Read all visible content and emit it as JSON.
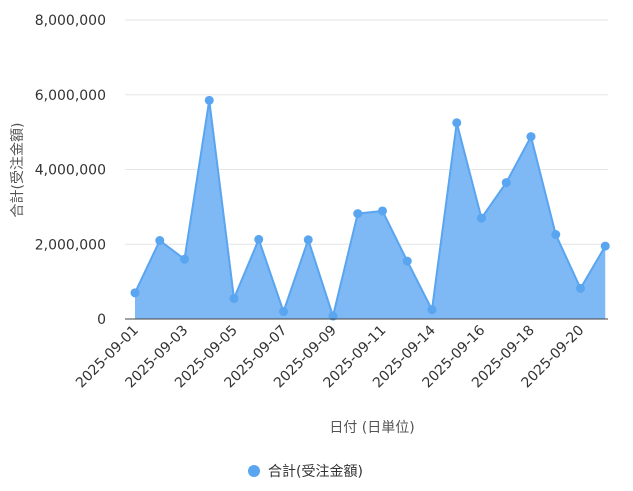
{
  "chart_data": {
    "type": "area",
    "xlabel": "日付 (日単位)",
    "ylabel": "合計(受注金額)",
    "ylim": [
      0,
      8000000
    ],
    "yticks": [
      0,
      2000000,
      4000000,
      6000000,
      8000000
    ],
    "ytick_labels": [
      "0",
      "2,000,000",
      "4,000,000",
      "6,000,000",
      "8,000,000"
    ],
    "xtick_labels": [
      "2025-09-01",
      "2025-09-03",
      "2025-09-05",
      "2025-09-07",
      "2025-09-09",
      "2025-09-11",
      "2025-09-14",
      "2025-09-16",
      "2025-09-18",
      "2025-09-20"
    ],
    "xtick_index": [
      0,
      2,
      4,
      6,
      8,
      10,
      12,
      14,
      16,
      18
    ],
    "grid": true,
    "legend_position": "bottom",
    "series": [
      {
        "name": "合計(受注金額)",
        "color": "#5aa5f0",
        "fill": "#7eb8f5",
        "x": [
          "2025-09-01",
          "2025-09-02",
          "2025-09-03",
          "2025-09-04",
          "2025-09-05",
          "2025-09-06",
          "2025-09-07",
          "2025-09-08",
          "2025-09-09",
          "2025-09-10",
          "2025-09-11",
          "2025-09-12",
          "2025-09-14",
          "2025-09-15",
          "2025-09-16",
          "2025-09-17",
          "2025-09-18",
          "2025-09-19",
          "2025-09-20",
          "2025-09-21"
        ],
        "values": [
          700000,
          2100000,
          1600000,
          5850000,
          550000,
          2130000,
          200000,
          2120000,
          80000,
          2820000,
          2890000,
          1550000,
          250000,
          5250000,
          2700000,
          3650000,
          4880000,
          2260000,
          820000,
          1950000
        ]
      }
    ]
  }
}
